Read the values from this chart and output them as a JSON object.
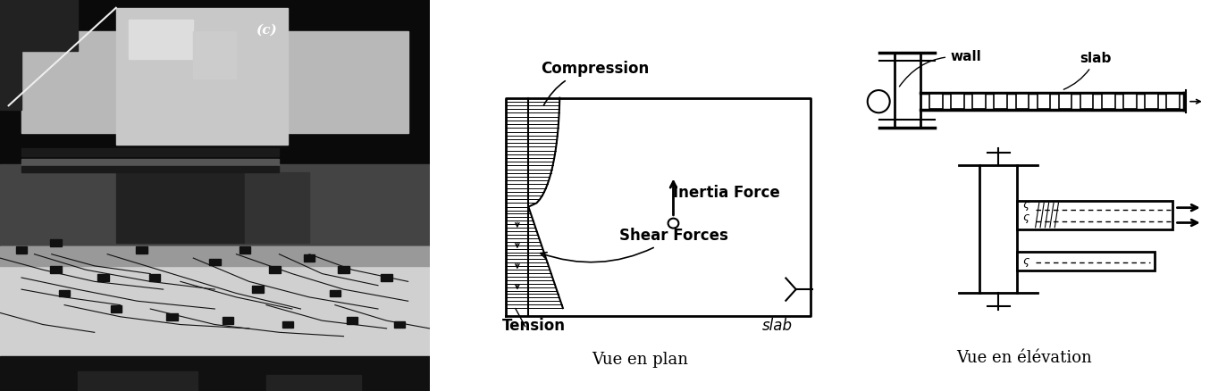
{
  "bg_color": "#ffffff",
  "diagram_line_color": "#000000",
  "label_vue_plan": "Vue en plan",
  "label_vue_elevation": "Vue en élévation",
  "label_compression": "Compression",
  "label_inertia": "Inertia Force",
  "label_shear": "Shear Forces",
  "label_tension": "Tension",
  "label_slab_plan": "slab",
  "label_wall": "wall",
  "label_slab_elev": "slab",
  "label_c": "(c)",
  "font_size_labels": 10,
  "font_size_vue": 13,
  "fig_width": 13.54,
  "fig_height": 4.38
}
